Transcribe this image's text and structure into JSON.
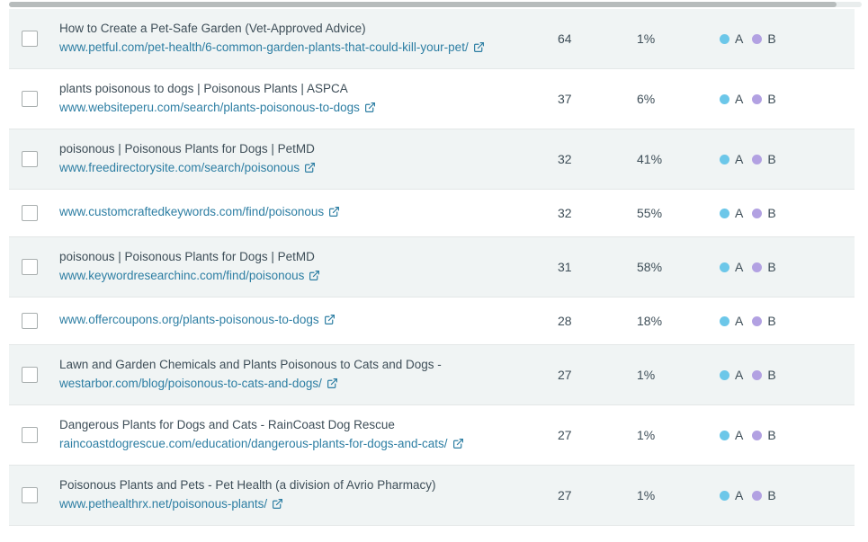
{
  "scrollbar": {
    "orientation": "horizontal"
  },
  "table": {
    "badges": [
      {
        "label": "A",
        "color": "#6cc7e9"
      },
      {
        "label": "B",
        "color": "#b2a1e2"
      }
    ],
    "colors": {
      "row_shaded_bg": "#f0f4f4",
      "row_divider": "#e3e7e7",
      "title_text": "#3e4e58",
      "url_link": "#2d7ea3",
      "dot_a": "#6cc7e9",
      "dot_b": "#b2a1e2"
    },
    "rows": [
      {
        "title": "How to Create a Pet-Safe Garden (Vet-Approved Advice)",
        "url": "www.petful.com/pet-health/6-common-garden-plants-that-could-kill-your-pet/",
        "metric": "64",
        "percent": "1%",
        "shaded": true
      },
      {
        "title": "plants poisonous to dogs | Poisonous Plants | ASPCA",
        "url": "www.websiteperu.com/search/plants-poisonous-to-dogs",
        "metric": "37",
        "percent": "6%",
        "shaded": false
      },
      {
        "title": "poisonous | Poisonous Plants for Dogs | PetMD",
        "url": "www.freedirectorysite.com/search/poisonous",
        "metric": "32",
        "percent": "41%",
        "shaded": true
      },
      {
        "title": "",
        "url": "www.customcraftedkeywords.com/find/poisonous",
        "metric": "32",
        "percent": "55%",
        "shaded": false
      },
      {
        "title": "poisonous | Poisonous Plants for Dogs | PetMD",
        "url": "www.keywordresearchinc.com/find/poisonous",
        "metric": "31",
        "percent": "58%",
        "shaded": true
      },
      {
        "title": "",
        "url": "www.offercoupons.org/plants-poisonous-to-dogs",
        "metric": "28",
        "percent": "18%",
        "shaded": false
      },
      {
        "title": "Lawn and Garden Chemicals and Plants Poisonous to Cats and Dogs -",
        "url": "westarbor.com/blog/poisonous-to-cats-and-dogs/",
        "metric": "27",
        "percent": "1%",
        "shaded": true
      },
      {
        "title": "Dangerous Plants for Dogs and Cats - RainCoast Dog Rescue",
        "url": "raincoastdogrescue.com/education/dangerous-plants-for-dogs-and-cats/",
        "metric": "27",
        "percent": "1%",
        "shaded": false
      },
      {
        "title": "Poisonous Plants and Pets - Pet Health (a division of Avrio Pharmacy)",
        "url": "www.pethealthrx.net/poisonous-plants/",
        "metric": "27",
        "percent": "1%",
        "shaded": true
      }
    ]
  }
}
